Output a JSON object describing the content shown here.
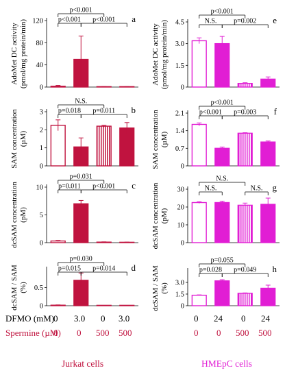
{
  "colors": {
    "jurkat": "#c0133f",
    "hmepc": "#e11ed4",
    "spermine_label": "#c0133f",
    "axis": "#000000"
  },
  "conditions": {
    "dfmo_label": "DFMO (mM)",
    "spermine_label": "Spermine (µM)",
    "jurkat_dfmo": [
      "0",
      "3.0",
      "0",
      "3.0"
    ],
    "jurkat_spermine": [
      "0",
      "0",
      "500",
      "500"
    ],
    "hmepc_dfmo": [
      "0",
      "24",
      "0",
      "24"
    ],
    "hmepc_spermine": [
      "0",
      "0",
      "500",
      "500"
    ]
  },
  "groups": {
    "jurkat": "Jurkat cells",
    "hmepc": "HMEpC cells"
  },
  "chart_data": [
    {
      "type": "bar",
      "panel": "a",
      "cell": "jurkat",
      "ylabel": "AdoMet DC activity (pmol/mg protein/min)",
      "ylim": [
        0,
        120
      ],
      "yticks": [
        "0",
        "40",
        "80",
        "120"
      ],
      "values": [
        1.5,
        50,
        0.5,
        0.5
      ],
      "errors": [
        1.5,
        42,
        0.3,
        0.3
      ],
      "comparisons": [
        {
          "a": 0,
          "b": 1,
          "label": "p<0.001",
          "level": 1
        },
        {
          "a": 1,
          "b": 3,
          "label": "p<0.001",
          "level": 1
        },
        {
          "a": 0,
          "b": 2,
          "label": "p<0.001",
          "level": 2
        }
      ]
    },
    {
      "type": "bar",
      "panel": "e",
      "cell": "hmepc",
      "ylabel": "AdoMet DC activity (pmol/mg protein/min)",
      "ylim": [
        0,
        4.5
      ],
      "yticks": [
        "0",
        "1.5",
        "3.0",
        "4.5"
      ],
      "values": [
        3.2,
        3.0,
        0.25,
        0.55
      ],
      "errors": [
        0.2,
        0.5,
        0.05,
        0.15
      ],
      "comparisons": [
        {
          "a": 0,
          "b": 1,
          "label": "N.S.",
          "level": 1
        },
        {
          "a": 1,
          "b": 3,
          "label": "p=0.002",
          "level": 1
        },
        {
          "a": 0,
          "b": 2,
          "label": "p<0.001",
          "level": 2
        }
      ]
    },
    {
      "type": "bar",
      "panel": "b",
      "cell": "jurkat",
      "ylabel": "SAM concentration (µM)",
      "ylim": [
        0,
        3
      ],
      "yticks": [
        "0",
        "1",
        "2",
        "3"
      ],
      "values": [
        2.25,
        1.05,
        2.2,
        2.1
      ],
      "errors": [
        0.3,
        0.5,
        0.05,
        0.3
      ],
      "comparisons": [
        {
          "a": 0,
          "b": 1,
          "label": "p=0.018",
          "level": 1
        },
        {
          "a": 1,
          "b": 3,
          "label": "p=0.011",
          "level": 1
        },
        {
          "a": 0,
          "b": 2,
          "label": "N.S.",
          "level": 2
        }
      ]
    },
    {
      "type": "bar",
      "panel": "f",
      "cell": "hmepc",
      "ylabel": "SAM concentration (µM)",
      "ylim": [
        0,
        2.1
      ],
      "yticks": [
        "0",
        "0.7",
        "1.4",
        "2.1"
      ],
      "values": [
        1.65,
        0.7,
        1.3,
        0.95
      ],
      "errors": [
        0.06,
        0.05,
        0.02,
        0.04
      ],
      "comparisons": [
        {
          "a": 0,
          "b": 1,
          "label": "p<0.001",
          "level": 1
        },
        {
          "a": 1,
          "b": 3,
          "label": "p=0.003",
          "level": 1
        },
        {
          "a": 0,
          "b": 2,
          "label": "p<0.001",
          "level": 2
        }
      ]
    },
    {
      "type": "bar",
      "panel": "c",
      "cell": "jurkat",
      "ylabel": "dcSAM concentration (pM)",
      "ylim": [
        0,
        10
      ],
      "yticks": [
        "0",
        "5",
        "10"
      ],
      "values": [
        0.3,
        7.0,
        0.1,
        0.05
      ],
      "errors": [
        0.1,
        0.6,
        0.05,
        0.05
      ],
      "comparisons": [
        {
          "a": 0,
          "b": 1,
          "label": "p=0.011",
          "level": 1
        },
        {
          "a": 1,
          "b": 3,
          "label": "p<0.001",
          "level": 1
        },
        {
          "a": 0,
          "b": 2,
          "label": "p=0.031",
          "level": 2
        }
      ]
    },
    {
      "type": "bar",
      "panel": "g",
      "cell": "hmepc",
      "ylabel": "dcSAM concentration (pM)",
      "ylim": [
        0,
        30
      ],
      "yticks": [
        "0",
        "10",
        "20",
        "30"
      ],
      "values": [
        22.5,
        22.5,
        21.0,
        21.5
      ],
      "errors": [
        0.5,
        0.8,
        1.2,
        3.5
      ],
      "comparisons": [
        {
          "a": 0,
          "b": 1,
          "label": "N.S.",
          "level": 1
        },
        {
          "a": 2,
          "b": 3,
          "label": "N.S.",
          "level": 1
        },
        {
          "a": 0,
          "b": 2,
          "label": "N.S.",
          "level": 2
        }
      ]
    },
    {
      "type": "bar",
      "panel": "d",
      "cell": "jurkat",
      "ylabel": "dcSAM / SAM (%)",
      "ylim": [
        0,
        1.0
      ],
      "yticks": [
        "0",
        "0.5"
      ],
      "values": [
        0.015,
        0.7,
        0.005,
        0.005
      ],
      "errors": [
        0.008,
        0.2,
        0.003,
        0.003
      ],
      "comparisons": [
        {
          "a": 0,
          "b": 1,
          "label": "p=0.015",
          "level": 1
        },
        {
          "a": 1,
          "b": 3,
          "label": "p=0.014",
          "level": 1
        },
        {
          "a": 0,
          "b": 2,
          "label": "p=0.030",
          "level": 2
        }
      ]
    },
    {
      "type": "bar",
      "panel": "h",
      "cell": "hmepc",
      "ylabel": "dcSAM / SAM (%)",
      "ylim": [
        0,
        4.5
      ],
      "yticks": [
        "0",
        "1.5",
        "3.0"
      ],
      "values": [
        1.35,
        3.2,
        1.6,
        2.25
      ],
      "errors": [
        0.05,
        0.15,
        0.05,
        0.4
      ],
      "comparisons": [
        {
          "a": 0,
          "b": 1,
          "label": "p=0.028",
          "level": 1
        },
        {
          "a": 1,
          "b": 3,
          "label": "p=0.049",
          "level": 1
        },
        {
          "a": 0,
          "b": 2,
          "label": "p=0.055",
          "level": 2
        }
      ]
    }
  ]
}
